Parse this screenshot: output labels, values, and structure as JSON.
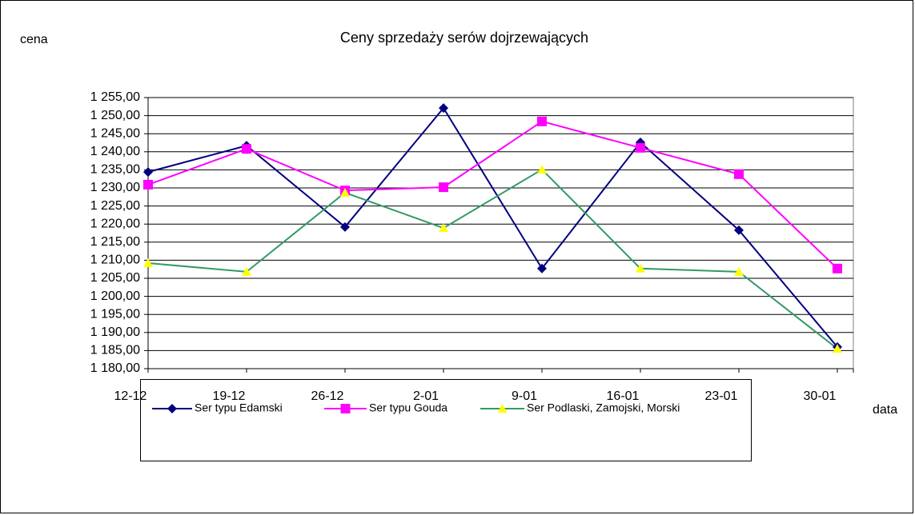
{
  "chart_data": {
    "type": "line",
    "title": "Ceny sprzedaży serów dojrzewających",
    "y_label": "cena",
    "x_label": "data",
    "categories": [
      "12-12",
      "19-12",
      "26-12",
      "2-01",
      "9-01",
      "16-01",
      "23-01",
      "30-01"
    ],
    "series": [
      {
        "name": "Ser typu Edamski",
        "color": "#000080",
        "marker": "diamond",
        "marker_color": "#000080",
        "values": [
          1234.4,
          1241.7,
          1219.2,
          1252.1,
          1207.7,
          1242.6,
          1218.3,
          1186.0
        ]
      },
      {
        "name": "Ser typu Gouda",
        "color": "#ff00ff",
        "marker": "square",
        "marker_color": "#ff00ff",
        "values": [
          1230.9,
          1240.8,
          1229.3,
          1230.2,
          1248.4,
          1241.1,
          1233.8,
          1207.7
        ]
      },
      {
        "name": "Ser Podlaski, Zamojski, Morski",
        "color": "#339966",
        "marker": "triangle",
        "marker_color": "#ffff00",
        "values": [
          1209.2,
          1206.8,
          1228.7,
          1218.9,
          1235.1,
          1207.7,
          1206.8,
          1185.5
        ]
      }
    ],
    "ylim": [
      1180,
      1255
    ],
    "yticks": [
      {
        "value": 1180,
        "label": "1 180,00"
      },
      {
        "value": 1185,
        "label": "1 185,00"
      },
      {
        "value": 1190,
        "label": "1 190,00"
      },
      {
        "value": 1195,
        "label": "1 195,00"
      },
      {
        "value": 1200,
        "label": "1 200,00"
      },
      {
        "value": 1205,
        "label": "1 205,00"
      },
      {
        "value": 1210,
        "label": "1 210,00"
      },
      {
        "value": 1215,
        "label": "1 215,00"
      },
      {
        "value": 1220,
        "label": "1 220,00"
      },
      {
        "value": 1225,
        "label": "1 225,00"
      },
      {
        "value": 1230,
        "label": "1 230,00"
      },
      {
        "value": 1235,
        "label": "1 235,00"
      },
      {
        "value": 1240,
        "label": "1 240,00"
      },
      {
        "value": 1245,
        "label": "1 245,00"
      },
      {
        "value": 1250,
        "label": "1 250,00"
      },
      {
        "value": 1255,
        "label": "1 255,00"
      }
    ],
    "grid": true,
    "legend": "bottom"
  }
}
